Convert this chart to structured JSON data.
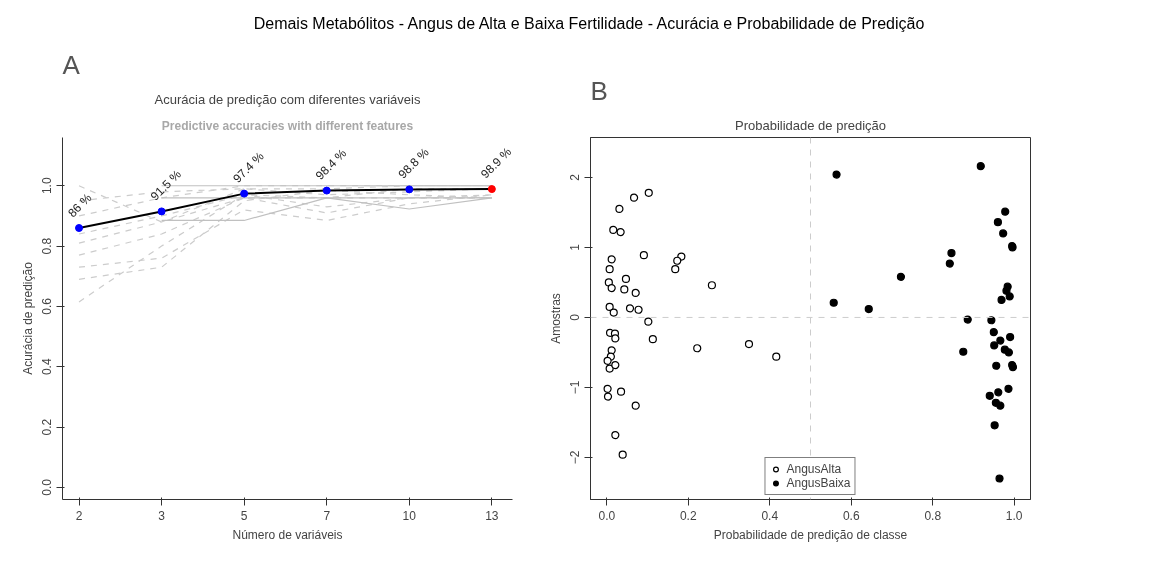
{
  "chart_data": [
    {
      "type": "line",
      "title": "Acurácia de predição com diferentes variáveis",
      "subtitle": "Predictive accuracies with different features",
      "annotations": [
        "Demais Metabólitos - Angus de Alta e Baixa Fertilidade - Acurácia e Probabilidade de Predição",
        "A"
      ],
      "xlabel": "Número de variáveis",
      "ylabel": "Acurácia de predição",
      "categories": [
        "2",
        "3",
        "5",
        "7",
        "10",
        "13"
      ],
      "ylim": [
        -0.04,
        1.16
      ],
      "yticks": [
        {
          "value": 0,
          "label": "0.0"
        },
        {
          "value": 0.2,
          "label": "0.2"
        },
        {
          "value": 0.4,
          "label": "0.4"
        },
        {
          "value": 0.6,
          "label": "0.6"
        },
        {
          "value": 0.8,
          "label": "0.8"
        },
        {
          "value": 1.0,
          "label": "1.0"
        }
      ],
      "grid": false,
      "series": [
        {
          "color": "#cccccc",
          "line_style": "dashed",
          "values": [
            0.615,
            0.8,
            0.97,
            0.96,
            0.96,
            0.96
          ]
        },
        {
          "color": "#cccccc",
          "line_style": "dashed",
          "values": [
            0.69,
            0.73,
            0.95,
            0.985,
            0.97,
            0.96
          ]
        },
        {
          "color": "#cccccc",
          "line_style": "dashed",
          "values": [
            0.73,
            0.76,
            0.92,
            0.885,
            0.94,
            0.97
          ]
        },
        {
          "color": "#cccccc",
          "line_style": "dashed",
          "values": [
            0.77,
            0.84,
            0.96,
            0.96,
            0.99,
            0.99
          ]
        },
        {
          "color": "#cccccc",
          "line_style": "dashed",
          "values": [
            0.81,
            0.88,
            0.99,
            0.99,
            1.0,
            1.0
          ]
        },
        {
          "color": "#cccccc",
          "line_style": "dashed",
          "values": [
            0.84,
            0.9,
            0.97,
            0.93,
            0.96,
            0.96
          ]
        },
        {
          "color": "#cccccc",
          "line_style": "dashed",
          "values": [
            0.9,
            0.96,
            1.0,
            1.0,
            1.0,
            1.0
          ]
        },
        {
          "color": "#cccccc",
          "line_style": "dashed",
          "values": [
            0.95,
            0.98,
            0.99,
            0.97,
            0.98,
            0.99
          ]
        },
        {
          "color": "#cccccc",
          "line_style": "dashed",
          "values": [
            1.0,
            0.88,
            0.96,
            0.91,
            0.96,
            0.97
          ]
        },
        {
          "color": "#c0c0c0",
          "line_style": "solid",
          "values": [
            null,
            0.885,
            0.885,
            0.96,
            0.96,
            0.96
          ]
        },
        {
          "color": "#c0c0c0",
          "line_style": "solid",
          "values": [
            null,
            0.96,
            0.96,
            0.96,
            0.923,
            0.96
          ]
        },
        {
          "color": "#c0c0c0",
          "line_style": "solid",
          "values": [
            null,
            1.0,
            1.0,
            1.0,
            1.0,
            1.0
          ]
        },
        {
          "color": "#000000",
          "line_style": "solid",
          "values": [
            0.86,
            0.915,
            0.974,
            0.984,
            0.988,
            0.989
          ]
        },
        {
          "type": "scatter",
          "marker": "circle",
          "colors": [
            "#0000ff",
            "#0000ff",
            "#0000ff",
            "#0000ff",
            "#0000ff",
            "#ff0000"
          ],
          "values": [
            0.86,
            0.915,
            0.974,
            0.984,
            0.988,
            0.989
          ],
          "value_labels": [
            "86 %",
            "91.5 %",
            "97.4 %",
            "98.4 %",
            "98.8 %",
            "98.9 %"
          ]
        }
      ]
    },
    {
      "type": "scatter",
      "title": "Probabilidade de predição",
      "annotations": [
        "B"
      ],
      "xlabel": "Probabilidade de predição de classe",
      "ylabel": "Amostras",
      "xlim": [
        -0.04,
        1.04
      ],
      "ylim": [
        -2.6,
        2.57
      ],
      "xticks": [
        {
          "value": 0,
          "label": "0.0"
        },
        {
          "value": 0.2,
          "label": "0.2"
        },
        {
          "value": 0.4,
          "label": "0.4"
        },
        {
          "value": 0.6,
          "label": "0.6"
        },
        {
          "value": 0.8,
          "label": "0.8"
        },
        {
          "value": 1.0,
          "label": "1.0"
        }
      ],
      "yticks": [
        -2,
        -1,
        0,
        1,
        2
      ],
      "grid": false,
      "legend": "bottom",
      "marker": "circle",
      "ref_lines": [
        {
          "axis": "x",
          "value": 0.5,
          "color": "#cccccc",
          "line_style": "dashed"
        },
        {
          "axis": "y",
          "value": 0,
          "color": "#cccccc",
          "line_style": "dashed"
        }
      ],
      "series": [
        {
          "name": "AngusAlta",
          "color": "#ffffff",
          "x": [
            0.103,
            0.067,
            0.031,
            0.016,
            0.034,
            0.091,
            0.012,
            0.183,
            0.173,
            0.168,
            0.007,
            0.047,
            0.005,
            0.012,
            0.043,
            0.071,
            0.258,
            0.007,
            0.017,
            0.057,
            0.078,
            0.102,
            0.008,
            0.02,
            0.021,
            0.113,
            0.222,
            0.349,
            0.416,
            0.012,
            0.01,
            0.002,
            0.007,
            0.021,
            0.002,
            0.003,
            0.035,
            0.071,
            0.021,
            0.039
          ],
          "values": [
            1.78,
            1.71,
            1.55,
            1.25,
            1.22,
            0.89,
            0.83,
            0.87,
            0.81,
            0.69,
            0.69,
            0.55,
            0.5,
            0.42,
            0.4,
            0.35,
            0.46,
            0.15,
            0.07,
            0.13,
            0.11,
            -0.06,
            -0.22,
            -0.23,
            -0.3,
            -0.31,
            -0.44,
            -0.38,
            -0.56,
            -0.47,
            -0.56,
            -0.62,
            -0.73,
            -0.68,
            -1.02,
            -1.13,
            -1.06,
            -1.26,
            -1.68,
            -1.96
          ]
        },
        {
          "name": "AngusBaixa",
          "color": "#000000",
          "x": [
            0.564,
            0.918,
            0.978,
            0.96,
            0.973,
            0.995,
            0.996,
            0.846,
            0.842,
            0.722,
            0.557,
            0.643,
            0.984,
            0.981,
            0.989,
            0.969,
            0.886,
            0.944,
            0.95,
            0.99,
            0.966,
            0.951,
            0.977,
            0.987,
            0.875,
            0.956,
            0.995,
            0.997,
            0.986,
            0.961,
            0.94,
            0.955,
            0.966,
            0.952,
            0.964
          ],
          "values": [
            2.04,
            2.16,
            1.51,
            1.36,
            1.2,
            1.02,
            1.0,
            0.92,
            0.77,
            0.58,
            0.21,
            0.12,
            0.44,
            0.38,
            0.3,
            0.25,
            -0.03,
            -0.04,
            -0.21,
            -0.28,
            -0.33,
            -0.4,
            -0.46,
            -0.5,
            -0.49,
            -0.69,
            -0.68,
            -0.71,
            -1.02,
            -1.07,
            -1.12,
            -1.22,
            -1.26,
            -1.54,
            -2.3
          ]
        }
      ]
    }
  ]
}
